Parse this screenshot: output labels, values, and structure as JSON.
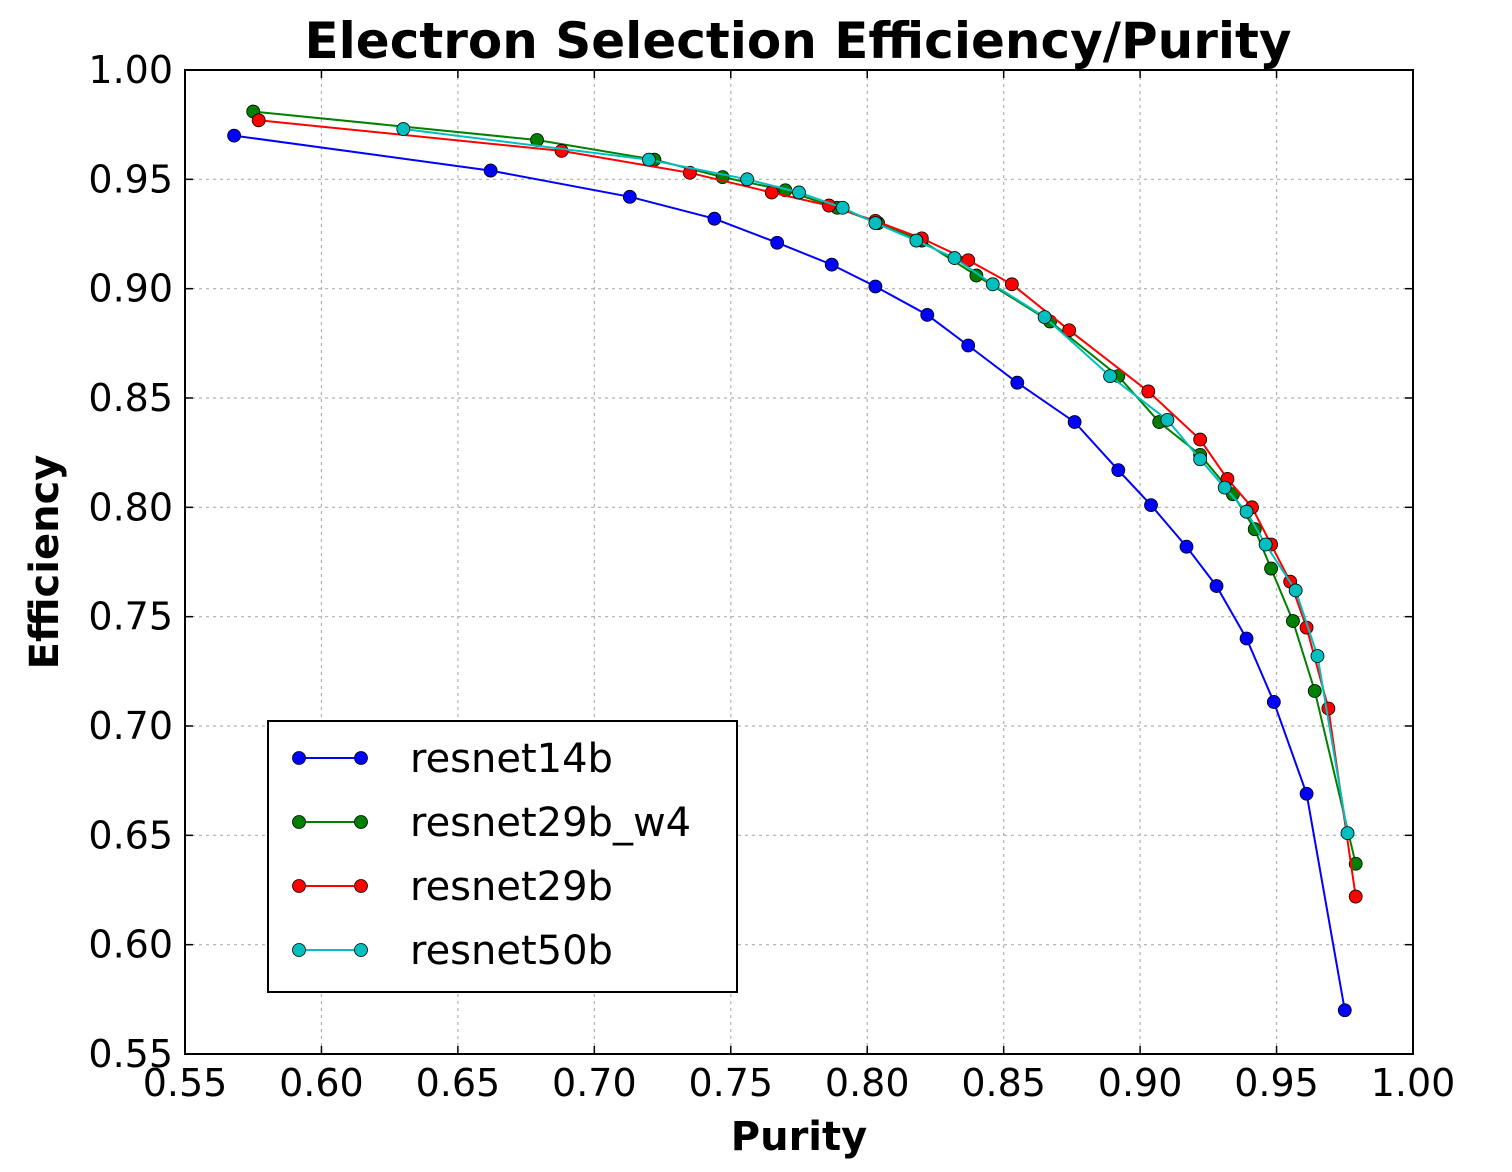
{
  "chart_data": {
    "type": "line",
    "title": "Electron Selection Efficiency/Purity",
    "xlabel": "Purity",
    "ylabel": "Efficiency",
    "xlim": [
      0.55,
      1.0
    ],
    "ylim": [
      0.55,
      1.0
    ],
    "xticks": [
      "0.55",
      "0.60",
      "0.65",
      "0.70",
      "0.75",
      "0.80",
      "0.85",
      "0.90",
      "0.95",
      "1.00"
    ],
    "yticks": [
      "0.55",
      "0.60",
      "0.65",
      "0.70",
      "0.75",
      "0.80",
      "0.85",
      "0.90",
      "0.95",
      "1.00"
    ],
    "grid": true,
    "legend_position": "lower-left",
    "series": [
      {
        "name": "resnet14b",
        "color": "#0000ff",
        "x": [
          0.568,
          0.662,
          0.713,
          0.744,
          0.767,
          0.787,
          0.803,
          0.822,
          0.837,
          0.855,
          0.876,
          0.892,
          0.904,
          0.917,
          0.928,
          0.939,
          0.949,
          0.961,
          0.975
        ],
        "y": [
          0.97,
          0.954,
          0.942,
          0.932,
          0.921,
          0.911,
          0.901,
          0.888,
          0.874,
          0.857,
          0.839,
          0.817,
          0.801,
          0.782,
          0.764,
          0.74,
          0.711,
          0.669,
          0.57
        ]
      },
      {
        "name": "resnet29b_w4",
        "color": "#008000",
        "x": [
          0.575,
          0.679,
          0.722,
          0.747,
          0.77,
          0.789,
          0.804,
          0.82,
          0.84,
          0.867,
          0.892,
          0.907,
          0.922,
          0.934,
          0.942,
          0.948,
          0.956,
          0.964,
          0.979
        ],
        "y": [
          0.981,
          0.968,
          0.959,
          0.951,
          0.945,
          0.937,
          0.93,
          0.922,
          0.906,
          0.885,
          0.86,
          0.839,
          0.824,
          0.806,
          0.79,
          0.772,
          0.748,
          0.716,
          0.637
        ]
      },
      {
        "name": "resnet29b",
        "color": "#ff0000",
        "x": [
          0.577,
          0.688,
          0.735,
          0.765,
          0.786,
          0.803,
          0.82,
          0.837,
          0.853,
          0.874,
          0.903,
          0.922,
          0.932,
          0.941,
          0.948,
          0.955,
          0.961,
          0.969,
          0.979
        ],
        "y": [
          0.977,
          0.963,
          0.953,
          0.944,
          0.938,
          0.931,
          0.923,
          0.913,
          0.902,
          0.881,
          0.853,
          0.831,
          0.813,
          0.8,
          0.783,
          0.766,
          0.745,
          0.708,
          0.622
        ]
      },
      {
        "name": "resnet50b",
        "color": "#00bfbf",
        "x": [
          0.63,
          0.72,
          0.756,
          0.775,
          0.791,
          0.803,
          0.818,
          0.832,
          0.846,
          0.865,
          0.889,
          0.91,
          0.922,
          0.931,
          0.939,
          0.946,
          0.957,
          0.965,
          0.976
        ],
        "y": [
          0.973,
          0.959,
          0.95,
          0.944,
          0.937,
          0.93,
          0.922,
          0.914,
          0.902,
          0.887,
          0.86,
          0.84,
          0.822,
          0.809,
          0.798,
          0.783,
          0.762,
          0.732,
          0.651
        ]
      }
    ]
  }
}
